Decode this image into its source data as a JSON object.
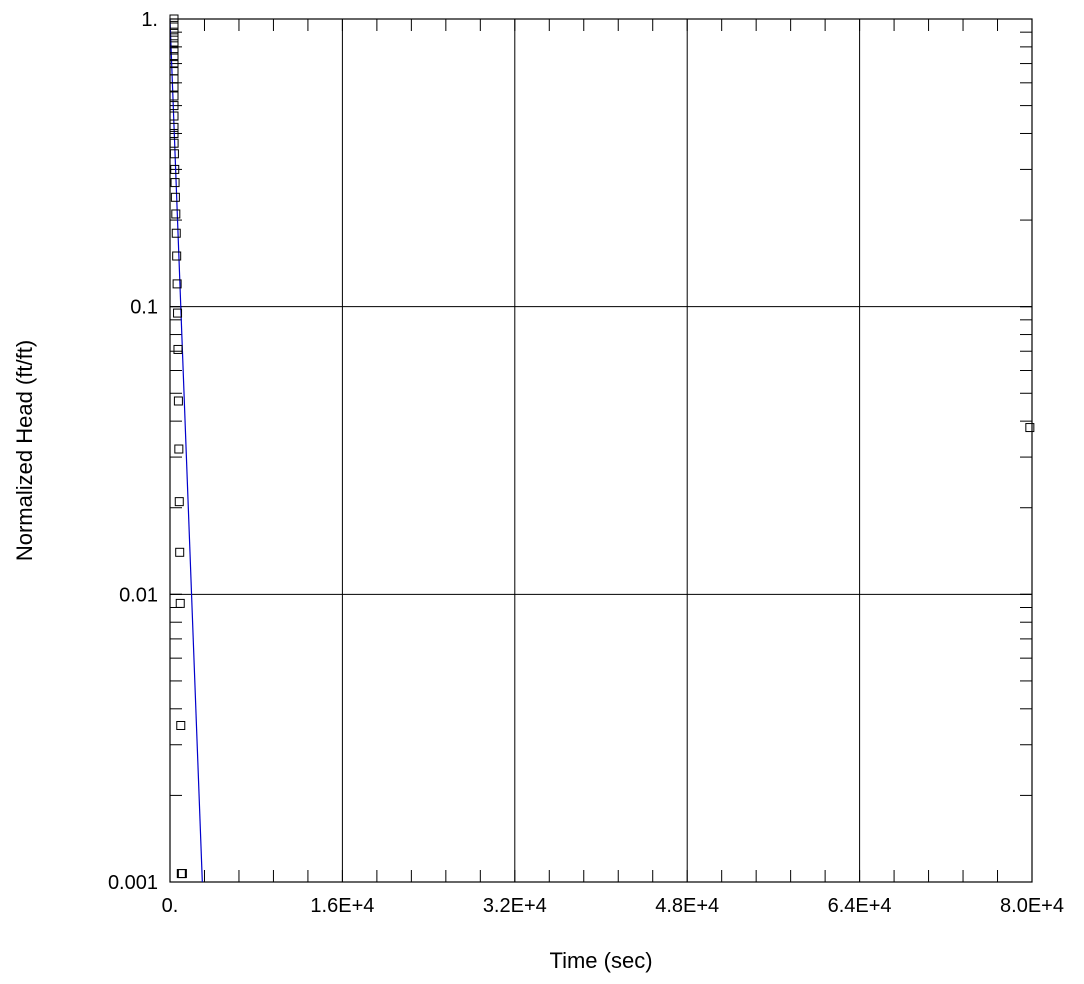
{
  "chart_data": {
    "type": "scatter",
    "xlabel": "Time (sec)",
    "ylabel": "Normalized Head (ft/ft)",
    "x_scale": "linear",
    "y_scale": "log",
    "xlim": [
      0,
      80000
    ],
    "ylim": [
      0.001,
      1
    ],
    "x_tick_labels": [
      {
        "value": 0,
        "label": "0."
      },
      {
        "value": 16000,
        "label": "1.6E+4"
      },
      {
        "value": 32000,
        "label": "3.2E+4"
      },
      {
        "value": 48000,
        "label": "4.8E+4"
      },
      {
        "value": 64000,
        "label": "6.4E+4"
      },
      {
        "value": 80000,
        "label": "8.0E+4"
      }
    ],
    "y_tick_labels": [
      {
        "value": 1,
        "label": "1."
      },
      {
        "value": 0.1,
        "label": "0.1"
      },
      {
        "value": 0.01,
        "label": "0.01"
      },
      {
        "value": 0.001,
        "label": "0.001"
      }
    ],
    "grid": true,
    "colors": {
      "data": "#000000",
      "fit": "#0000cc",
      "grid": "#000000"
    },
    "series": [
      {
        "kind": "observed",
        "marker": "square",
        "x": [
          0,
          20,
          40,
          60,
          80,
          100,
          120,
          140,
          160,
          180,
          200,
          230,
          260,
          290,
          320,
          350,
          380,
          410,
          440,
          470,
          500,
          540,
          580,
          620,
          660,
          700,
          740,
          780,
          820,
          860,
          900,
          950,
          1000,
          1050,
          1100,
          1150,
          79800
        ],
        "y": [
          1.0,
          0.95,
          0.9,
          0.86,
          0.82,
          0.78,
          0.74,
          0.7,
          0.66,
          0.62,
          0.58,
          0.54,
          0.5,
          0.46,
          0.42,
          0.4,
          0.37,
          0.34,
          0.3,
          0.27,
          0.24,
          0.21,
          0.18,
          0.15,
          0.12,
          0.095,
          0.071,
          0.047,
          0.032,
          0.021,
          0.014,
          0.0093,
          0.0035,
          0.00107,
          0.00107,
          0.00107,
          0.038
        ]
      },
      {
        "kind": "fit",
        "x": [
          0,
          3000
        ],
        "y": [
          1.0,
          0.001
        ]
      }
    ]
  }
}
